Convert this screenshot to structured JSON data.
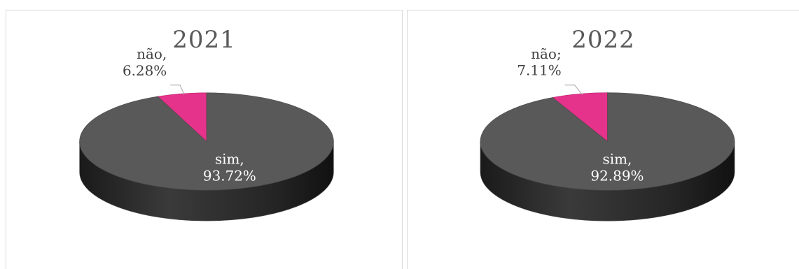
{
  "chart_data": [
    {
      "type": "pie",
      "style": "3d",
      "title": "2021",
      "slices": [
        {
          "category": "não",
          "value": 6.28,
          "label": "6.28%",
          "color": "#e5328a",
          "label_sep": ","
        },
        {
          "category": "sim",
          "value": 93.72,
          "label": "93.72%",
          "color": "#595959",
          "label_sep": ","
        }
      ]
    },
    {
      "type": "pie",
      "style": "3d",
      "title": "2022",
      "slices": [
        {
          "category": "não",
          "value": 7.11,
          "label": "7.11%",
          "color": "#e5328a",
          "label_sep": ";"
        },
        {
          "category": "sim",
          "value": 92.89,
          "label": "92.89%",
          "color": "#595959",
          "label_sep": ","
        }
      ]
    }
  ]
}
